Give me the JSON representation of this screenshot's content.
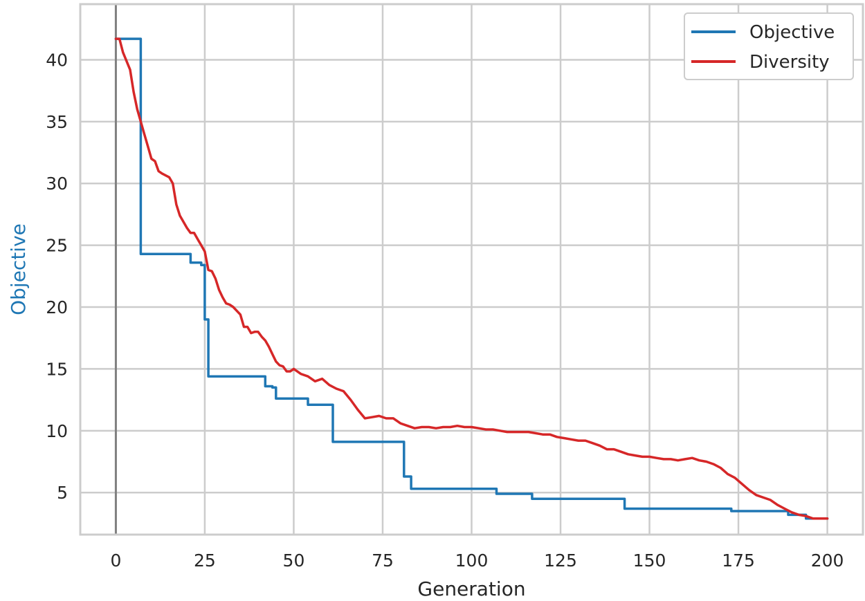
{
  "chart_data": {
    "type": "line",
    "xlabel": "Generation",
    "ylabel": "Objective",
    "xlim": [
      -10,
      210
    ],
    "ylim": [
      1.6,
      44.5
    ],
    "xticks": [
      0,
      25,
      50,
      75,
      100,
      125,
      150,
      175,
      200
    ],
    "yticks": [
      5,
      10,
      15,
      20,
      25,
      30,
      35,
      40
    ],
    "grid": true,
    "legend_position": "top-right",
    "vertical_reference_line_x": 0,
    "colors": {
      "Objective": "#1f77b4",
      "Diversity": "#d62728",
      "reference": "#808080",
      "grid": "#cccccc",
      "ylabel": "#1f77b4",
      "xlabel": "#262626"
    },
    "series": [
      {
        "name": "Objective",
        "step": true,
        "x": [
          0,
          6,
          7,
          20,
          21,
          24,
          25,
          26,
          41,
          42,
          44,
          45,
          53,
          54,
          60,
          61,
          80,
          81,
          82,
          83,
          106,
          107,
          116,
          117,
          142,
          143,
          172,
          173,
          188,
          189,
          193,
          194,
          200
        ],
        "values": [
          41.7,
          41.7,
          24.3,
          24.3,
          23.6,
          23.4,
          19.0,
          14.4,
          14.4,
          13.6,
          13.5,
          12.6,
          12.6,
          12.1,
          12.1,
          9.1,
          9.1,
          6.3,
          6.3,
          5.3,
          5.3,
          4.9,
          4.9,
          4.5,
          4.5,
          3.7,
          3.7,
          3.5,
          3.5,
          3.2,
          3.2,
          2.9,
          2.9
        ]
      },
      {
        "name": "Diversity",
        "step": false,
        "x": [
          0,
          1,
          2,
          4,
          5,
          6,
          7,
          8,
          9,
          10,
          11,
          12,
          13,
          15,
          16,
          17,
          18,
          19,
          20,
          21,
          22,
          23,
          24,
          25,
          26,
          27,
          28,
          29,
          30,
          31,
          32,
          33,
          34,
          35,
          36,
          37,
          38,
          39,
          40,
          41,
          42,
          43,
          44,
          45,
          46,
          47,
          48,
          49,
          50,
          52,
          54,
          56,
          58,
          60,
          62,
          64,
          66,
          68,
          70,
          72,
          74,
          76,
          78,
          80,
          82,
          84,
          86,
          88,
          90,
          92,
          94,
          96,
          98,
          100,
          102,
          104,
          106,
          108,
          110,
          112,
          114,
          116,
          118,
          120,
          122,
          124,
          126,
          128,
          130,
          132,
          134,
          136,
          138,
          140,
          142,
          144,
          146,
          148,
          150,
          152,
          154,
          156,
          158,
          160,
          162,
          164,
          166,
          168,
          170,
          172,
          174,
          176,
          178,
          180,
          182,
          184,
          186,
          188,
          190,
          192,
          194,
          196,
          198,
          200
        ],
        "values": [
          41.7,
          41.7,
          40.6,
          39.2,
          37.4,
          36.0,
          35.0,
          34.0,
          33.0,
          32.0,
          31.8,
          31.0,
          30.8,
          30.5,
          30.0,
          28.3,
          27.4,
          26.9,
          26.4,
          26.0,
          26.0,
          25.5,
          25.0,
          24.5,
          23.0,
          22.9,
          22.3,
          21.4,
          20.8,
          20.3,
          20.2,
          20.0,
          19.7,
          19.4,
          18.4,
          18.4,
          17.9,
          18.0,
          18.0,
          17.6,
          17.3,
          16.8,
          16.2,
          15.6,
          15.3,
          15.2,
          14.8,
          14.8,
          15.0,
          14.6,
          14.4,
          14.0,
          14.2,
          13.7,
          13.4,
          13.2,
          12.5,
          11.7,
          11.0,
          11.1,
          11.2,
          11.0,
          11.0,
          10.6,
          10.4,
          10.2,
          10.3,
          10.3,
          10.2,
          10.3,
          10.3,
          10.4,
          10.3,
          10.3,
          10.2,
          10.1,
          10.1,
          10.0,
          9.9,
          9.9,
          9.9,
          9.9,
          9.8,
          9.7,
          9.7,
          9.5,
          9.4,
          9.3,
          9.2,
          9.2,
          9.0,
          8.8,
          8.5,
          8.5,
          8.3,
          8.1,
          8.0,
          7.9,
          7.9,
          7.8,
          7.7,
          7.7,
          7.6,
          7.7,
          7.8,
          7.6,
          7.5,
          7.3,
          7.0,
          6.5,
          6.2,
          5.7,
          5.2,
          4.8,
          4.6,
          4.4,
          4.0,
          3.7,
          3.4,
          3.2,
          3.1,
          2.9,
          2.9,
          2.9
        ]
      }
    ]
  }
}
